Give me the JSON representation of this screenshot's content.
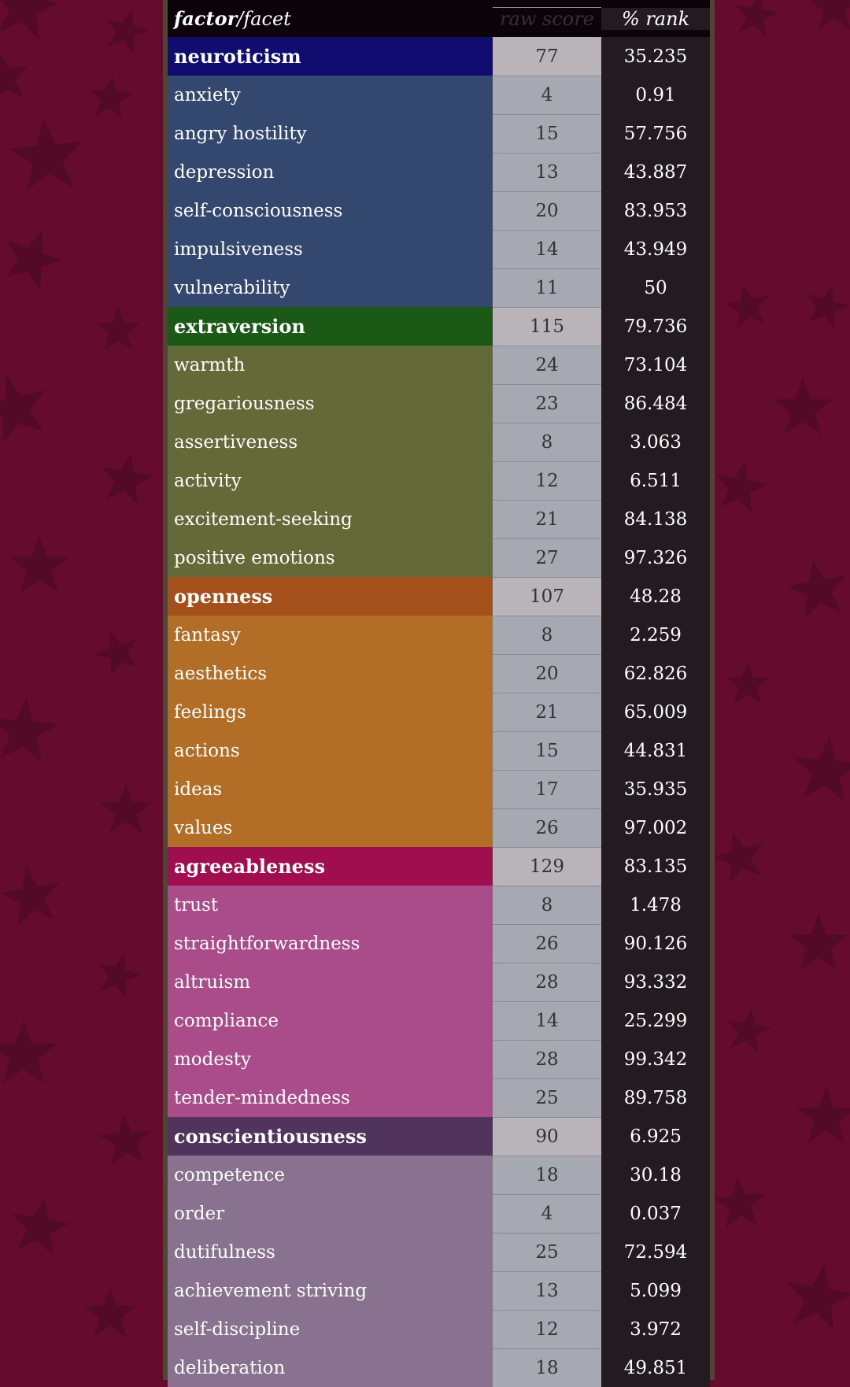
{
  "header": {
    "factor_label": "factor",
    "facet_label": "/facet",
    "raw_score_label": "raw score",
    "rank_label": "% rank"
  },
  "colors": {
    "background": "#650b2e",
    "star": "#520a25",
    "frame": "#4f4535",
    "header_bg": "#0d030a",
    "raw_factor_bg": "#b9b4ba",
    "raw_facet_bg": "#a6a8b2",
    "rank_bg": "#231b20"
  },
  "groups": [
    {
      "factor": {
        "name": "neuroticism",
        "raw": "77",
        "rank": "35.235",
        "color": "#100c70"
      },
      "facet_color": "#34476f",
      "facets": [
        {
          "name": "anxiety",
          "raw": "4",
          "rank": "0.91"
        },
        {
          "name": "angry hostility",
          "raw": "15",
          "rank": "57.756"
        },
        {
          "name": "depression",
          "raw": "13",
          "rank": "43.887"
        },
        {
          "name": "self-consciousness",
          "raw": "20",
          "rank": "83.953"
        },
        {
          "name": "impulsiveness",
          "raw": "14",
          "rank": "43.949"
        },
        {
          "name": "vulnerability",
          "raw": "11",
          "rank": "50"
        }
      ]
    },
    {
      "factor": {
        "name": "extraversion",
        "raw": "115",
        "rank": "79.736",
        "color": "#1b5a16"
      },
      "facet_color": "#636a37",
      "facets": [
        {
          "name": "warmth",
          "raw": "24",
          "rank": "73.104"
        },
        {
          "name": "gregariousness",
          "raw": "23",
          "rank": "86.484"
        },
        {
          "name": "assertiveness",
          "raw": "8",
          "rank": "3.063"
        },
        {
          "name": "activity",
          "raw": "12",
          "rank": "6.511"
        },
        {
          "name": "excitement-seeking",
          "raw": "21",
          "rank": "84.138"
        },
        {
          "name": "positive emotions",
          "raw": "27",
          "rank": "97.326"
        }
      ]
    },
    {
      "factor": {
        "name": "openness",
        "raw": "107",
        "rank": "48.28",
        "color": "#a3501d"
      },
      "facet_color": "#b26d26",
      "facets": [
        {
          "name": "fantasy",
          "raw": "8",
          "rank": "2.259"
        },
        {
          "name": "aesthetics",
          "raw": "20",
          "rank": "62.826"
        },
        {
          "name": "feelings",
          "raw": "21",
          "rank": "65.009"
        },
        {
          "name": "actions",
          "raw": "15",
          "rank": "44.831"
        },
        {
          "name": "ideas",
          "raw": "17",
          "rank": "35.935"
        },
        {
          "name": "values",
          "raw": "26",
          "rank": "97.002"
        }
      ]
    },
    {
      "factor": {
        "name": "agreeableness",
        "raw": "129",
        "rank": "83.135",
        "color": "#a00e50"
      },
      "facet_color": "#ab4c8a",
      "facets": [
        {
          "name": "trust",
          "raw": "8",
          "rank": "1.478"
        },
        {
          "name": "straightforwardness",
          "raw": "26",
          "rank": "90.126"
        },
        {
          "name": "altruism",
          "raw": "28",
          "rank": "93.332"
        },
        {
          "name": "compliance",
          "raw": "14",
          "rank": "25.299"
        },
        {
          "name": "modesty",
          "raw": "28",
          "rank": "99.342"
        },
        {
          "name": "tender-mindedness",
          "raw": "25",
          "rank": "89.758"
        }
      ]
    },
    {
      "factor": {
        "name": "conscientiousness",
        "raw": "90",
        "rank": "6.925",
        "color": "#50345e"
      },
      "facet_color": "#88728f",
      "facets": [
        {
          "name": "competence",
          "raw": "18",
          "rank": "30.18"
        },
        {
          "name": "order",
          "raw": "4",
          "rank": "0.037"
        },
        {
          "name": "dutifulness",
          "raw": "25",
          "rank": "72.594"
        },
        {
          "name": "achievement striving",
          "raw": "13",
          "rank": "5.099"
        },
        {
          "name": "self-discipline",
          "raw": "12",
          "rank": "3.972"
        },
        {
          "name": "deliberation",
          "raw": "18",
          "rank": "49.851"
        }
      ]
    }
  ]
}
